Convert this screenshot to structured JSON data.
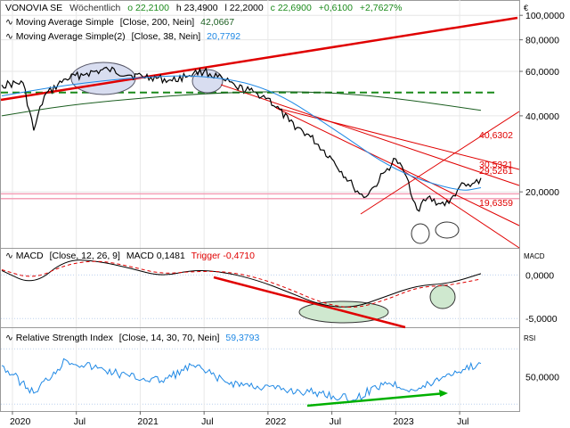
{
  "header": {
    "symbol": "VONOVIA SE",
    "period": "Wöchentlich",
    "open": "o 22,2100",
    "high": "h 23,4900",
    "low": "l 22,2000",
    "close": "c 22,6900",
    "change": "+0,6100",
    "change_pct": "+2,7627%",
    "currency": "€"
  },
  "indicators": {
    "ma200_label": "Moving Average Simple",
    "ma200_params": "[Close, 200, Nein]",
    "ma200_value": "42,0667",
    "ma38_label": "Moving Average Simple(2)",
    "ma38_params": "[Close, 38, Nein]",
    "ma38_value": "20,7792",
    "macd_label": "MACD",
    "macd_params": "[Close, 12, 26, 9]",
    "macd_value_label": "MACD 0,1481",
    "trigger_label": "Trigger -0,4710",
    "macd_axis_label": "MACD",
    "rsi_label": "Relative Strength Index",
    "rsi_params": "[Close, 14, 30, 70, Nein]",
    "rsi_value": "59,3793",
    "rsi_axis_label": "RSI"
  },
  "annotations": {
    "level_1": "40,6302",
    "level_2": "30,5321",
    "level_3": "29,5261",
    "level_4": "19,6359"
  },
  "colors": {
    "price": "#000000",
    "ma200": "#1b5e20",
    "ma38": "#1e88e5",
    "trend": "#e00000",
    "pink_band": "#f4a0b8",
    "macd": "#000000",
    "trigger": "#e00000",
    "rsi": "#1e88e5",
    "rsi_trend": "#00b000",
    "ellipse_fill": "#d8ddf0",
    "ellipse_green": "#cfe8cf"
  },
  "chart_data": [
    {
      "type": "line",
      "title": "VONOVIA SE Wöchentlich",
      "y_scale": "log",
      "ylim": [
        12,
        115
      ],
      "y_ticks": [
        "100,0000",
        "80,0000",
        "60,0000",
        "40,0000",
        "20,0000"
      ],
      "x_ticks": [
        "2020",
        "Jul",
        "2021",
        "Jul",
        "2022",
        "Jul",
        "2023",
        "Jul"
      ],
      "series": [
        {
          "name": "Close",
          "x": [
            "2019-12",
            "2020-02",
            "2020-03",
            "2020-04",
            "2020-06",
            "2020-08",
            "2020-10",
            "2020-12",
            "2021-02",
            "2021-04",
            "2021-06",
            "2021-07",
            "2021-09",
            "2021-10",
            "2021-12",
            "2022-01",
            "2022-03",
            "2022-05",
            "2022-07",
            "2022-09",
            "2022-10",
            "2022-11",
            "2022-12",
            "2023-01",
            "2023-02",
            "2023-03",
            "2023-04",
            "2023-05",
            "2023-06",
            "2023-07",
            "2023-08",
            "2023-09"
          ],
          "values": [
            53,
            54,
            35,
            48,
            56,
            59,
            61,
            58,
            57,
            55,
            59,
            60,
            55,
            52,
            49,
            47,
            38,
            33,
            27,
            21,
            19,
            21,
            24,
            27,
            23,
            17,
            19,
            18,
            18,
            21,
            21,
            22.7
          ]
        },
        {
          "name": "MA 200",
          "x": [
            "2019-12",
            "2020-06",
            "2021-01",
            "2021-07",
            "2022-01",
            "2022-07",
            "2023-01",
            "2023-09"
          ],
          "values": [
            40,
            44,
            47,
            49,
            50,
            49.5,
            47,
            42.07
          ]
        },
        {
          "name": "MA 38",
          "x": [
            "2019-12",
            "2020-06",
            "2021-01",
            "2021-07",
            "2022-01",
            "2022-07",
            "2023-01",
            "2023-07",
            "2023-09"
          ],
          "values": [
            48,
            53,
            57,
            58,
            52,
            36,
            24,
            20,
            20.78
          ]
        }
      ],
      "horizontal_lines": [
        49.5,
        19.64,
        18.8
      ]
    },
    {
      "type": "line",
      "title": "MACD [Close, 12, 26, 9]",
      "ylim": [
        -6,
        3
      ],
      "y_ticks": [
        "0,0000",
        "-5,0000"
      ],
      "series": [
        {
          "name": "MACD",
          "x": [
            "2019-12",
            "2020-03",
            "2020-06",
            "2020-09",
            "2020-12",
            "2021-03",
            "2021-06",
            "2021-09",
            "2021-12",
            "2022-03",
            "2022-06",
            "2022-09",
            "2022-12",
            "2023-03",
            "2023-06",
            "2023-09"
          ],
          "values": [
            0.5,
            -1.2,
            1.8,
            1.6,
            0.8,
            -0.2,
            0.6,
            0.3,
            -0.6,
            -2.0,
            -3.5,
            -3.8,
            -2.5,
            -1.2,
            -1.0,
            0.15
          ]
        },
        {
          "name": "Trigger",
          "x": [
            "2019-12",
            "2020-03",
            "2020-06",
            "2020-09",
            "2020-12",
            "2021-03",
            "2021-06",
            "2021-09",
            "2021-12",
            "2022-03",
            "2022-06",
            "2022-09",
            "2022-12",
            "2023-03",
            "2023-06",
            "2023-09"
          ],
          "values": [
            0.6,
            -0.5,
            1.2,
            1.7,
            1.0,
            0.1,
            0.4,
            0.4,
            -0.3,
            -1.6,
            -3.2,
            -3.9,
            -2.9,
            -1.4,
            -1.2,
            -0.47
          ]
        }
      ]
    },
    {
      "type": "line",
      "title": "Relative Strength Index [Close, 14, 30, 70, Nein]",
      "ylim": [
        25,
        85
      ],
      "y_ticks": [
        "50,0000"
      ],
      "series": [
        {
          "name": "RSI",
          "x": [
            "2019-12",
            "2020-03",
            "2020-06",
            "2020-09",
            "2020-12",
            "2021-03",
            "2021-06",
            "2021-09",
            "2021-12",
            "2022-03",
            "2022-06",
            "2022-09",
            "2022-12",
            "2023-03",
            "2023-06",
            "2023-09"
          ],
          "values": [
            58,
            38,
            62,
            56,
            50,
            47,
            58,
            46,
            43,
            40,
            38,
            33,
            46,
            40,
            52,
            59.38
          ]
        }
      ],
      "horizontal_lines": [
        70,
        30
      ]
    }
  ]
}
